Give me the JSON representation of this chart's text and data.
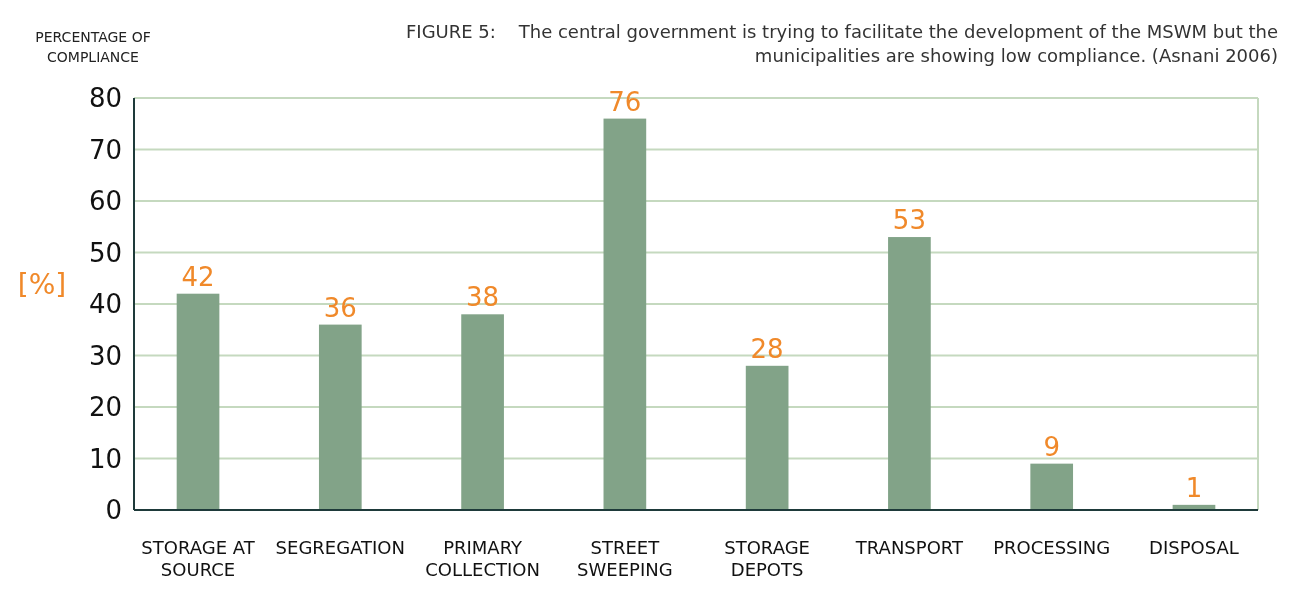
{
  "chart_data": {
    "type": "bar",
    "title": "FIGURE 5:    The central government is trying to facilitate the development of the MSWM but the municipalities are showing low compliance. (Asnani 2006)",
    "ylabel": "[%]",
    "annotations": [
      "PERCENTAGE OF COMPLIANCE"
    ],
    "categories": [
      "STORAGE AT SOURCE",
      "SEGREGATION",
      "PRIMARY COLLECTION",
      "STREET SWEEPING",
      "STORAGE DEPOTS",
      "TRANSPORT",
      "PROCESSING",
      "DISPOSAL"
    ],
    "values": [
      42,
      36,
      38,
      76,
      28,
      53,
      9,
      1
    ],
    "color": "#82a388",
    "ylim": [
      0,
      80
    ],
    "yticks": [
      0,
      10,
      20,
      30,
      40,
      50,
      60,
      70,
      80
    ],
    "grid": "y",
    "data_labels": true
  }
}
